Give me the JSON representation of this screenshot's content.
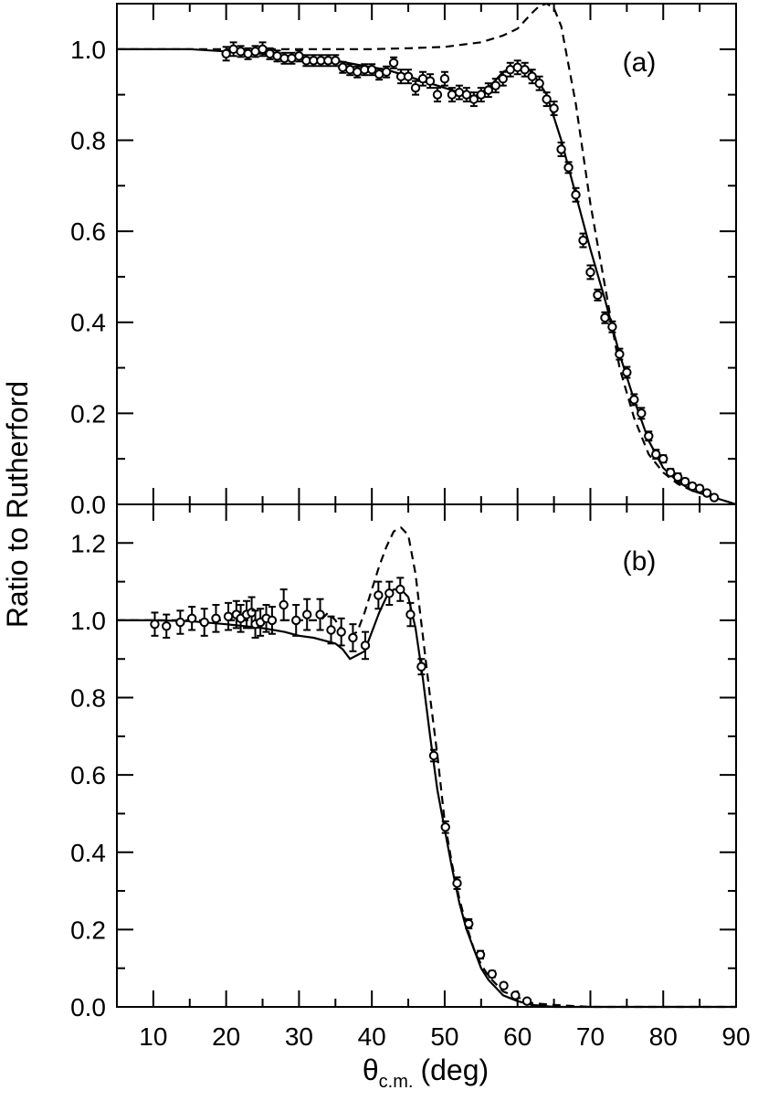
{
  "chart_data": {
    "type": "scatter",
    "xlabel": {
      "symbol": "θ",
      "subscript": "c.m.",
      "unit": "(deg)"
    },
    "ylabel": "Ratio to Rutherford",
    "xlim": [
      5,
      90
    ],
    "x_ticks": [
      "10",
      "20",
      "30",
      "40",
      "50",
      "60",
      "70",
      "80",
      "90"
    ],
    "panels": [
      {
        "label": "(a)",
        "ylim": [
          0,
          1.1
        ],
        "y_ticks": [
          "0.0",
          "0.2",
          "0.4",
          "0.6",
          "0.8",
          "1.0"
        ],
        "series": [
          {
            "style": "solid-line",
            "x": [
              5,
              10,
              15,
              20,
              25,
              30,
              35,
              40,
              42,
              44,
              46,
              48,
              50,
              52,
              54,
              56,
              58,
              60,
              62,
              64,
              66,
              68,
              70,
              72,
              74,
              76,
              78,
              80,
              82,
              84,
              86,
              88,
              90
            ],
            "y": [
              1.0,
              1.0,
              1.0,
              0.995,
              0.99,
              0.983,
              0.975,
              0.96,
              0.955,
              0.945,
              0.935,
              0.925,
              0.915,
              0.905,
              0.895,
              0.915,
              0.95,
              0.965,
              0.95,
              0.9,
              0.8,
              0.68,
              0.56,
              0.45,
              0.33,
              0.23,
              0.14,
              0.08,
              0.05,
              0.03,
              0.02,
              0.01,
              0.0
            ]
          },
          {
            "style": "dashed-line",
            "x": [
              5,
              10,
              20,
              30,
              35,
              40,
              45,
              50,
              55,
              58,
              60,
              62,
              63,
              64,
              65,
              66,
              68,
              70,
              72,
              74,
              76,
              78,
              80,
              82,
              84,
              86,
              88,
              90
            ],
            "y": [
              1.0,
              1.0,
              1.0,
              1.0,
              1.0,
              1.0,
              1.002,
              1.005,
              1.015,
              1.03,
              1.045,
              1.08,
              1.095,
              1.1,
              1.09,
              1.05,
              0.88,
              0.66,
              0.48,
              0.3,
              0.19,
              0.11,
              0.07,
              0.045,
              0.03,
              0.02,
              0.01,
              0.0
            ]
          },
          {
            "style": "markers-with-errorbars",
            "x": [
              20,
              21,
              22,
              23,
              24,
              25,
              26,
              27,
              28,
              29,
              30,
              31,
              32,
              33,
              34,
              35,
              36,
              37,
              38,
              39,
              40,
              41,
              42,
              43,
              44,
              45,
              46,
              47,
              48,
              49,
              50,
              51,
              52,
              53,
              54,
              55,
              56,
              57,
              58,
              59,
              60,
              61,
              62,
              63,
              64,
              65,
              66,
              67,
              68,
              69,
              70,
              71,
              72,
              73,
              74,
              75,
              76,
              77,
              78,
              79,
              80,
              81,
              82,
              83,
              84,
              85,
              86,
              87
            ],
            "y": [
              0.99,
              1.0,
              0.995,
              0.99,
              0.995,
              1.0,
              0.99,
              0.985,
              0.98,
              0.98,
              0.985,
              0.975,
              0.975,
              0.975,
              0.975,
              0.975,
              0.96,
              0.955,
              0.95,
              0.955,
              0.955,
              0.945,
              0.95,
              0.97,
              0.94,
              0.94,
              0.915,
              0.935,
              0.93,
              0.9,
              0.935,
              0.9,
              0.905,
              0.9,
              0.89,
              0.9,
              0.91,
              0.92,
              0.935,
              0.955,
              0.96,
              0.955,
              0.94,
              0.925,
              0.89,
              0.87,
              0.78,
              0.74,
              0.68,
              0.58,
              0.51,
              0.46,
              0.41,
              0.39,
              0.33,
              0.29,
              0.23,
              0.2,
              0.15,
              0.11,
              0.1,
              0.07,
              0.06,
              0.05,
              0.04,
              0.035,
              0.025,
              0.015
            ],
            "err": [
              0.015,
              0.015,
              0.012,
              0.012,
              0.012,
              0.015,
              0.012,
              0.012,
              0.012,
              0.012,
              0.012,
              0.012,
              0.012,
              0.012,
              0.012,
              0.012,
              0.012,
              0.012,
              0.012,
              0.012,
              0.012,
              0.012,
              0.012,
              0.012,
              0.015,
              0.015,
              0.015,
              0.015,
              0.015,
              0.015,
              0.015,
              0.015,
              0.015,
              0.015,
              0.015,
              0.015,
              0.015,
              0.015,
              0.015,
              0.015,
              0.015,
              0.015,
              0.015,
              0.015,
              0.015,
              0.015,
              0.015,
              0.012,
              0.015,
              0.015,
              0.015,
              0.012,
              0.012,
              0.012,
              0.012,
              0.012,
              0.012,
              0.012,
              0.01,
              0.01,
              0.008,
              0.008,
              0.008,
              0.006,
              0.006,
              0.006,
              0.005,
              0.005
            ]
          }
        ]
      },
      {
        "label": "(b)",
        "ylim": [
          0,
          1.3
        ],
        "y_ticks": [
          "0.0",
          "0.2",
          "0.4",
          "0.6",
          "0.8",
          "1.0",
          "1.2"
        ],
        "series": [
          {
            "style": "solid-line",
            "x": [
              5,
              10,
              15,
              20,
              25,
              28,
              30,
              32,
              34,
              35,
              36,
              37,
              38,
              39,
              40,
              41,
              42,
              43,
              44,
              45,
              46,
              47,
              48,
              49,
              50,
              51,
              52,
              53,
              54,
              55,
              56,
              58,
              60,
              62,
              65,
              70,
              80,
              90
            ],
            "y": [
              1.0,
              1.0,
              0.998,
              0.99,
              0.98,
              0.97,
              0.96,
              0.955,
              0.945,
              0.94,
              0.925,
              0.9,
              0.91,
              0.92,
              0.97,
              1.02,
              1.06,
              1.08,
              1.08,
              1.06,
              0.98,
              0.85,
              0.7,
              0.56,
              0.46,
              0.36,
              0.27,
              0.2,
              0.15,
              0.1,
              0.07,
              0.03,
              0.015,
              0.005,
              0.0,
              0.0,
              0.0,
              0.0
            ]
          },
          {
            "style": "dashed-line",
            "x": [
              5,
              10,
              20,
              30,
              32,
              33,
              34,
              35,
              36,
              37,
              38,
              39,
              40,
              41,
              42,
              43,
              44,
              45,
              46,
              47,
              48,
              49,
              50,
              51,
              52,
              53,
              54,
              55,
              56,
              57,
              58,
              60,
              62,
              65,
              70,
              80,
              90
            ],
            "y": [
              1.0,
              1.0,
              1.0,
              1.0,
              1.0,
              1.0,
              1.02,
              1.0,
              0.97,
              0.96,
              0.97,
              1.02,
              1.08,
              1.14,
              1.19,
              1.23,
              1.24,
              1.22,
              1.12,
              0.96,
              0.8,
              0.65,
              0.48,
              0.37,
              0.28,
              0.21,
              0.15,
              0.11,
              0.08,
              0.06,
              0.04,
              0.025,
              0.01,
              0.005,
              0.0,
              0.0,
              0.0
            ]
          },
          {
            "style": "markers-with-errorbars",
            "x": [
              10.2,
              11.8,
              13.7,
              15.3,
              17.0,
              18.6,
              20.3,
              21.4,
              22.0,
              22.8,
              23.5,
              24.0,
              24.7,
              25.5,
              26.3,
              27.9,
              29.6,
              31.1,
              32.9,
              34.4,
              35.8,
              37.4,
              39.1,
              40.9,
              42.4,
              43.9,
              45.3,
              46.8,
              48.5,
              50.1,
              51.7,
              53.3,
              54.9,
              56.5,
              58.1,
              59.7,
              61.3
            ],
            "y": [
              0.99,
              0.985,
              0.995,
              1.005,
              0.995,
              1.005,
              1.01,
              1.015,
              1.005,
              1.015,
              1.02,
              0.99,
              0.995,
              1.005,
              1.0,
              1.04,
              1.0,
              1.015,
              1.015,
              0.975,
              0.97,
              0.955,
              0.935,
              1.065,
              1.07,
              1.08,
              1.015,
              0.88,
              0.65,
              0.465,
              0.32,
              0.215,
              0.135,
              0.085,
              0.055,
              0.03,
              0.015
            ],
            "err": [
              0.03,
              0.03,
              0.03,
              0.03,
              0.035,
              0.035,
              0.035,
              0.035,
              0.035,
              0.035,
              0.04,
              0.035,
              0.035,
              0.035,
              0.035,
              0.04,
              0.04,
              0.04,
              0.04,
              0.035,
              0.035,
              0.035,
              0.035,
              0.035,
              0.03,
              0.03,
              0.03,
              0.02,
              0.015,
              0.015,
              0.015,
              0.012,
              0.01,
              0.008,
              0.006,
              0.005,
              0.004
            ]
          }
        ]
      }
    ]
  }
}
